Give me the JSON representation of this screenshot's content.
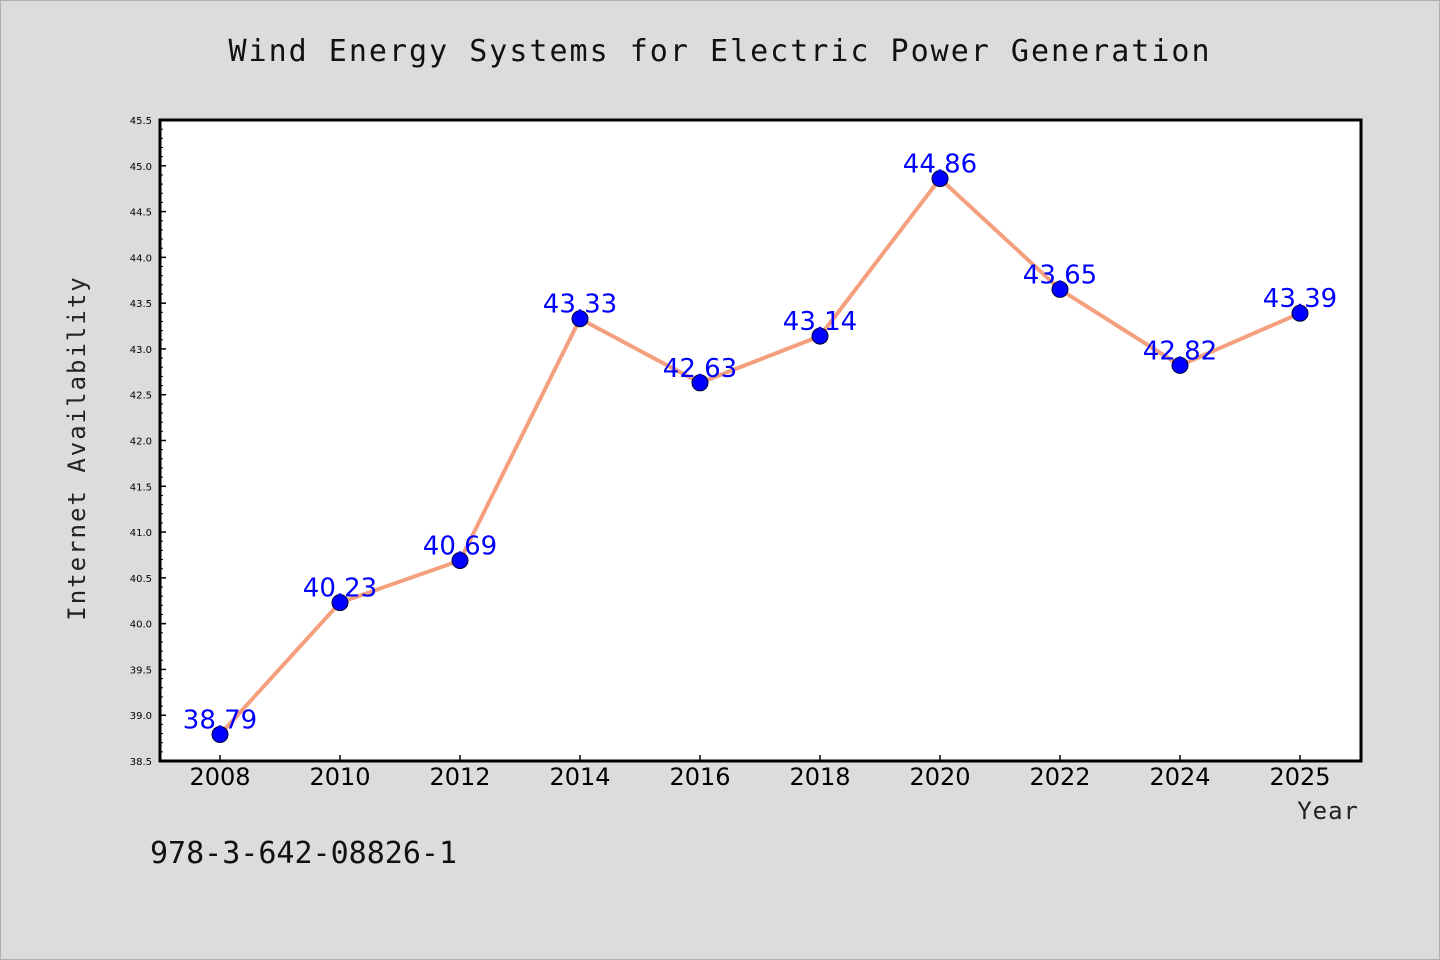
{
  "chart_data": {
    "type": "line",
    "title": "Wind Energy Systems for Electric Power Generation",
    "xlabel": "Year",
    "ylabel": "Internet Availability",
    "x": [
      2008,
      2010,
      2012,
      2014,
      2016,
      2018,
      2020,
      2022,
      2024,
      2025
    ],
    "x_tick_labels": [
      "2008",
      "2010",
      "2012",
      "2014",
      "2016",
      "2018",
      "2020",
      "2022",
      "2024",
      "2025"
    ],
    "series": [
      {
        "values": [
          38.79,
          40.23,
          40.69,
          43.33,
          42.63,
          43.14,
          44.86,
          43.65,
          42.82,
          43.39
        ],
        "value_labels": [
          "38.79",
          "40.23",
          "40.69",
          "43.33",
          "42.63",
          "43.14",
          "44.86",
          "43.65",
          "42.82",
          "43.39"
        ],
        "line_color": "#f4a07e",
        "marker_color": "#0000ff"
      }
    ],
    "ylim": [
      38.5,
      45.5
    ],
    "y_ticks": [
      "38.5",
      "39.0",
      "39.5",
      "40.0",
      "40.5",
      "41.0",
      "41.5",
      "42.0",
      "42.5",
      "43.0",
      "43.5",
      "44.0",
      "44.5",
      "45.0",
      "45.5"
    ],
    "grid": false,
    "data_labels": true
  },
  "footer": {
    "isbn": "978-3-642-08826-1"
  }
}
